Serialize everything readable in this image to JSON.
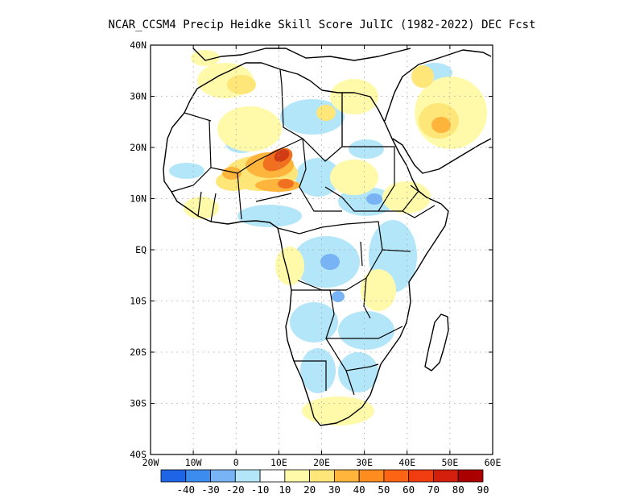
{
  "title": "NCAR_CCSM4 Precip Heidke Skill Score JulIC (1982-2022) DEC Fcst",
  "map": {
    "lon_range": [
      -20,
      60
    ],
    "lat_range": [
      -40,
      40
    ],
    "lat_ticks": [
      "40N",
      "30N",
      "20N",
      "10N",
      "EQ",
      "10S",
      "20S",
      "30S",
      "40S"
    ],
    "lon_ticks": [
      "20W",
      "10W",
      "0",
      "10E",
      "20E",
      "30E",
      "40E",
      "50E",
      "60E"
    ],
    "grid": true
  },
  "colorbar": {
    "labels": [
      "-40",
      "-30",
      "-20",
      "-10",
      "10",
      "20",
      "30",
      "40",
      "50",
      "60",
      "70",
      "80",
      "90"
    ],
    "colors": [
      "#1e64e6",
      "#3c8cf0",
      "#78b4f5",
      "#b4e6fa",
      "#ffffff",
      "#fffaaa",
      "#ffe678",
      "#ffb43c",
      "#ff8c1e",
      "#ff6414",
      "#f03c0f",
      "#d21e0a",
      "#aa0000"
    ]
  }
}
